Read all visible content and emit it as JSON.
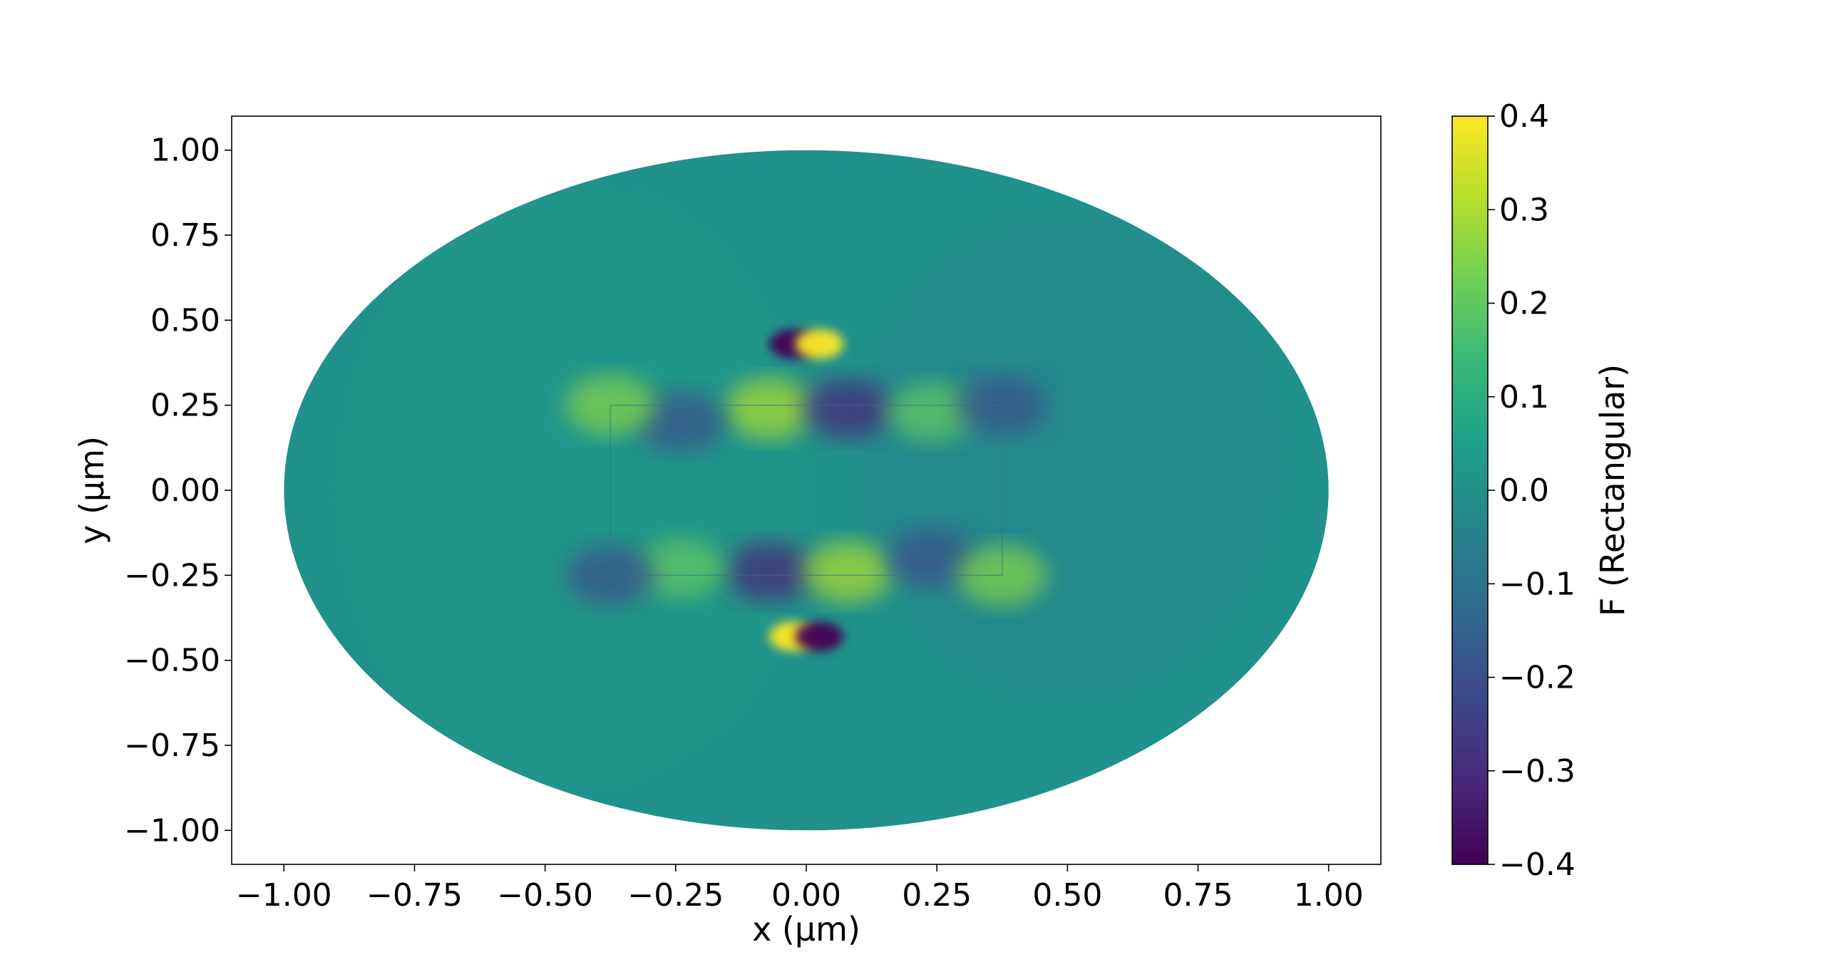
{
  "chart_data": {
    "type": "heatmap",
    "title": "",
    "xlabel": "x (μm)",
    "ylabel": "y (μm)",
    "xlim": [
      -1.1,
      1.1
    ],
    "ylim": [
      -1.1,
      1.1
    ],
    "x_ticks": [
      "−1.00",
      "−0.75",
      "−0.50",
      "−0.25",
      "0.00",
      "0.25",
      "0.50",
      "0.75",
      "1.00"
    ],
    "x_tick_values": [
      -1.0,
      -0.75,
      -0.5,
      -0.25,
      0.0,
      0.25,
      0.5,
      0.75,
      1.0
    ],
    "y_ticks": [
      "1.00",
      "0.75",
      "0.50",
      "0.25",
      "0.00",
      "−0.25",
      "−0.50",
      "−0.75",
      "−1.00"
    ],
    "y_tick_values": [
      1.0,
      0.75,
      0.5,
      0.25,
      0.0,
      -0.25,
      -0.5,
      -0.75,
      -1.0
    ],
    "domain": {
      "ellipse": {
        "cx": 0.0,
        "cy": 0.0,
        "rx": 1.0,
        "ry": 1.0
      },
      "rectangle": {
        "x0": -0.375,
        "x1": 0.375,
        "y0": -0.25,
        "y1": 0.25
      }
    },
    "field_features": [
      {
        "x": -0.025,
        "y": 0.43,
        "value": -0.4
      },
      {
        "x": 0.025,
        "y": 0.43,
        "value": 0.4
      },
      {
        "x": -0.025,
        "y": -0.43,
        "value": 0.4
      },
      {
        "x": 0.025,
        "y": -0.43,
        "value": -0.4
      },
      {
        "x": -0.07,
        "y": 0.24,
        "value": 0.3
      },
      {
        "x": 0.08,
        "y": 0.24,
        "value": -0.3
      },
      {
        "x": 0.24,
        "y": 0.23,
        "value": 0.2
      },
      {
        "x": -0.24,
        "y": 0.2,
        "value": -0.2
      },
      {
        "x": -0.07,
        "y": -0.24,
        "value": -0.3
      },
      {
        "x": 0.08,
        "y": -0.24,
        "value": 0.3
      },
      {
        "x": -0.24,
        "y": -0.23,
        "value": 0.2
      },
      {
        "x": 0.24,
        "y": -0.2,
        "value": -0.2
      },
      {
        "x": -0.375,
        "y": 0.25,
        "value": 0.25
      },
      {
        "x": 0.375,
        "y": 0.25,
        "value": -0.2
      },
      {
        "x": -0.375,
        "y": -0.25,
        "value": -0.2
      },
      {
        "x": 0.375,
        "y": -0.25,
        "value": 0.25
      }
    ],
    "colorbar": {
      "label": "F (Rectangular)",
      "colormap": "viridis",
      "range": [
        -0.4,
        0.4
      ],
      "ticks": [
        "0.4",
        "0.3",
        "0.2",
        "0.1",
        "0.0",
        "−0.1",
        "−0.2",
        "−0.3",
        "−0.4"
      ],
      "tick_values": [
        0.4,
        0.3,
        0.2,
        0.1,
        0.0,
        -0.1,
        -0.2,
        -0.3,
        -0.4
      ]
    },
    "grid": false,
    "colors": {
      "background_field": "#21918c",
      "viridis_stops": [
        "#440154",
        "#482878",
        "#3e4989",
        "#31688e",
        "#26828e",
        "#1f9e89",
        "#35b779",
        "#6ece58",
        "#b5de2b",
        "#fde725"
      ]
    }
  }
}
